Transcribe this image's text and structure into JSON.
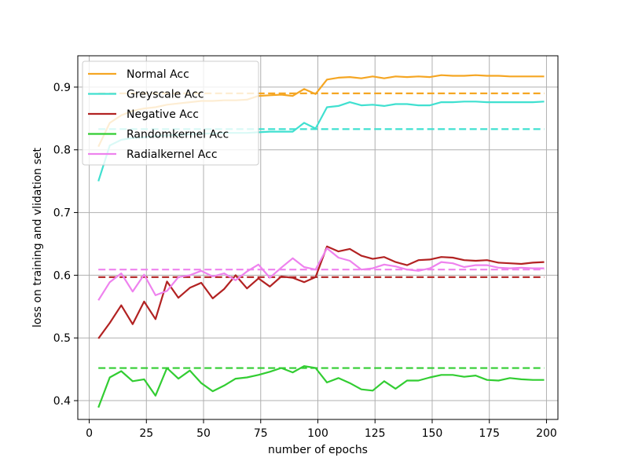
{
  "chart_data": {
    "type": "line",
    "title": "",
    "xlabel": "number of epochs",
    "ylabel": "loss on training and vlidation set",
    "xlim": [
      -5,
      205
    ],
    "ylim": [
      0.37,
      0.95
    ],
    "xticks": [
      0,
      25,
      50,
      75,
      100,
      125,
      150,
      175,
      200
    ],
    "yticks": [
      0.4,
      0.5,
      0.6,
      0.7,
      0.8,
      0.9
    ],
    "ytick_labels": [
      "0.4",
      "0.5",
      "0.6",
      "0.7",
      "0.8",
      "0.9"
    ],
    "grid": true,
    "legend_position": "top-left",
    "x": [
      4,
      9,
      14,
      19,
      24,
      29,
      34,
      39,
      44,
      49,
      54,
      59,
      64,
      69,
      74,
      79,
      84,
      89,
      94,
      99,
      104,
      109,
      114,
      119,
      124,
      129,
      134,
      139,
      144,
      149,
      154,
      159,
      164,
      169,
      174,
      179,
      184,
      189,
      194,
      199
    ],
    "series": [
      {
        "name": "Normal Acc",
        "color": "#f5a623",
        "values": [
          0.805,
          0.843,
          0.855,
          0.862,
          0.866,
          0.868,
          0.872,
          0.874,
          0.876,
          0.878,
          0.878,
          0.879,
          0.879,
          0.88,
          0.886,
          0.887,
          0.888,
          0.886,
          0.897,
          0.889,
          0.912,
          0.915,
          0.916,
          0.914,
          0.917,
          0.914,
          0.917,
          0.916,
          0.917,
          0.916,
          0.919,
          0.918,
          0.918,
          0.919,
          0.918,
          0.918,
          0.917,
          0.917,
          0.917,
          0.917
        ],
        "reference": 0.89
      },
      {
        "name": "Greyscale Acc",
        "color": "#40e0d0",
        "values": [
          0.75,
          0.807,
          0.816,
          0.819,
          0.82,
          0.822,
          0.823,
          0.824,
          0.825,
          0.826,
          0.826,
          0.827,
          0.827,
          0.827,
          0.828,
          0.829,
          0.829,
          0.829,
          0.843,
          0.834,
          0.868,
          0.87,
          0.876,
          0.871,
          0.872,
          0.87,
          0.873,
          0.873,
          0.871,
          0.871,
          0.876,
          0.876,
          0.877,
          0.877,
          0.876,
          0.876,
          0.876,
          0.876,
          0.876,
          0.877
        ],
        "reference": 0.833
      },
      {
        "name": "Negative Acc",
        "color": "#b22222",
        "values": [
          0.499,
          0.524,
          0.552,
          0.522,
          0.558,
          0.53,
          0.59,
          0.564,
          0.58,
          0.588,
          0.563,
          0.578,
          0.6,
          0.579,
          0.595,
          0.582,
          0.598,
          0.596,
          0.589,
          0.597,
          0.646,
          0.638,
          0.642,
          0.631,
          0.626,
          0.629,
          0.621,
          0.616,
          0.624,
          0.625,
          0.629,
          0.628,
          0.624,
          0.623,
          0.624,
          0.62,
          0.619,
          0.618,
          0.62,
          0.621
        ],
        "reference": 0.597
      },
      {
        "name": "Randomkernel Acc",
        "color": "#32cd32",
        "values": [
          0.389,
          0.437,
          0.447,
          0.431,
          0.434,
          0.408,
          0.452,
          0.435,
          0.448,
          0.428,
          0.415,
          0.424,
          0.435,
          0.437,
          0.441,
          0.446,
          0.452,
          0.445,
          0.455,
          0.452,
          0.429,
          0.436,
          0.428,
          0.418,
          0.416,
          0.431,
          0.419,
          0.432,
          0.432,
          0.437,
          0.441,
          0.441,
          0.438,
          0.44,
          0.433,
          0.432,
          0.436,
          0.434,
          0.433,
          0.433
        ],
        "reference": 0.452
      },
      {
        "name": "Radialkernel Acc",
        "color": "#ee82ee",
        "values": [
          0.56,
          0.589,
          0.603,
          0.574,
          0.601,
          0.568,
          0.575,
          0.597,
          0.6,
          0.607,
          0.598,
          0.603,
          0.592,
          0.606,
          0.617,
          0.596,
          0.612,
          0.627,
          0.613,
          0.609,
          0.643,
          0.628,
          0.623,
          0.609,
          0.611,
          0.617,
          0.614,
          0.609,
          0.607,
          0.611,
          0.621,
          0.619,
          0.613,
          0.616,
          0.616,
          0.612,
          0.611,
          0.612,
          0.611,
          0.611
        ],
        "reference": 0.609
      }
    ]
  }
}
